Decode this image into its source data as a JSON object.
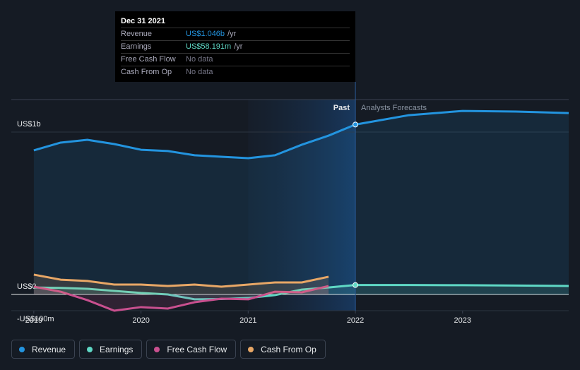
{
  "chart_data": {
    "type": "line",
    "x": [
      2019,
      2019.25,
      2019.5,
      2019.75,
      2020,
      2020.25,
      2020.5,
      2020.75,
      2021,
      2021.25,
      2021.5,
      2021.75,
      2022,
      2022.5,
      2023,
      2023.5,
      2023.99
    ],
    "series": [
      {
        "name": "Revenue",
        "color": "#2394df",
        "values": [
          887,
          935,
          952,
          926,
          891,
          883,
          857,
          848,
          839,
          857,
          922,
          978,
          1046,
          1104,
          1130,
          1126,
          1117
        ]
      },
      {
        "name": "Earnings",
        "color": "#5fd8c5",
        "values": [
          43,
          40,
          35,
          22,
          9,
          0,
          -30,
          -28,
          -22,
          -4,
          30,
          43,
          58,
          58,
          57,
          55,
          52
        ]
      },
      {
        "name": "Free Cash Flow",
        "color": "#c9508f",
        "values": [
          48,
          17,
          -35,
          -100,
          -78,
          -87,
          -48,
          -26,
          -30,
          17,
          13,
          52,
          null,
          null,
          null,
          null,
          null
        ]
      },
      {
        "name": "Cash From Op",
        "color": "#e8a766",
        "values": [
          122,
          91,
          83,
          61,
          61,
          52,
          61,
          48,
          61,
          74,
          74,
          109,
          null,
          null,
          null,
          null,
          null
        ]
      }
    ],
    "xlim": [
      2018.79,
      2023.99
    ],
    "xticks": [
      2019,
      2020,
      2021,
      2022,
      2023
    ],
    "ylim": [
      -100,
      1200
    ],
    "yticks": [
      {
        "value": -100,
        "label": "-US$100m"
      },
      {
        "value": 0,
        "label": "US$0"
      },
      {
        "value": 1000,
        "label": "US$1b"
      }
    ],
    "past_label": "Past",
    "forecast_label": "Analysts Forecasts",
    "tooltip": {
      "date": "Dec 31 2021",
      "rows": [
        {
          "name": "Revenue",
          "value": "US$1.046b",
          "unit": "/yr"
        },
        {
          "name": "Earnings",
          "value": "US$58.191m",
          "unit": "/yr"
        },
        {
          "name": "Free Cash Flow",
          "value": "No data"
        },
        {
          "name": "Cash From Op",
          "value": "No data"
        }
      ]
    }
  }
}
